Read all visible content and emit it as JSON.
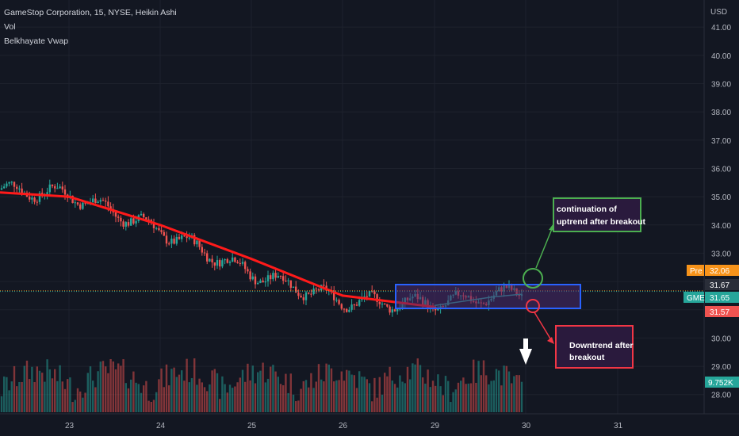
{
  "legend": {
    "title": "GameStop Corporation, 15, NYSE, Heikin Ashi",
    "indicator1": "Vol",
    "indicator2": "Belkhayate Vwap"
  },
  "axis": {
    "currency": "USD",
    "price_ticks": [
      "41.00",
      "40.00",
      "39.00",
      "38.00",
      "37.00",
      "36.00",
      "35.00",
      "34.00",
      "33.00",
      "32.00",
      "31.00",
      "30.00",
      "29.00",
      "28.00"
    ],
    "date_ticks": [
      "23",
      "24",
      "25",
      "26",
      "29",
      "30",
      "31"
    ]
  },
  "price_tags": {
    "pre_label": "Pre",
    "pre_value": "32.06",
    "dotted_value": "31.67",
    "symbol": "GME",
    "last_value": "31.65",
    "low_value": "31.57",
    "volume_value": "9.752K"
  },
  "colors": {
    "bull": "#26a69a",
    "bear": "#ef5350",
    "vwap": "#ff1a1a",
    "pre": "#f7931a",
    "box_blue": "#2962ff",
    "box_green": "#4caf50",
    "box_red": "#f23645"
  },
  "annotations": {
    "uptrend_text_line1": "continuation of",
    "uptrend_text_line2": "uptrend after breakout",
    "downtrend_text_line1": "Downtrend after",
    "downtrend_text_line2": "breakout"
  },
  "chart_data": {
    "type": "candlestick",
    "y_range": [
      27.6,
      41.2
    ],
    "anchors": [
      {
        "date": "23",
        "price": 35.1
      },
      {
        "date": "24",
        "price": 33.8
      },
      {
        "date": "25",
        "price": 32.3
      },
      {
        "date": "26",
        "price": 31.3
      },
      {
        "date": "29",
        "price": 31.2
      },
      {
        "date": "30",
        "price": 31.65
      }
    ],
    "vwap": [
      {
        "date": "23",
        "price": 35.0
      },
      {
        "date": "24",
        "price": 34.0
      },
      {
        "date": "25",
        "price": 32.8
      },
      {
        "date": "26",
        "price": 31.5
      },
      {
        "date": "29",
        "price": 31.1
      }
    ],
    "breakout_range": {
      "high": 32.1,
      "low": 31.3
    }
  }
}
